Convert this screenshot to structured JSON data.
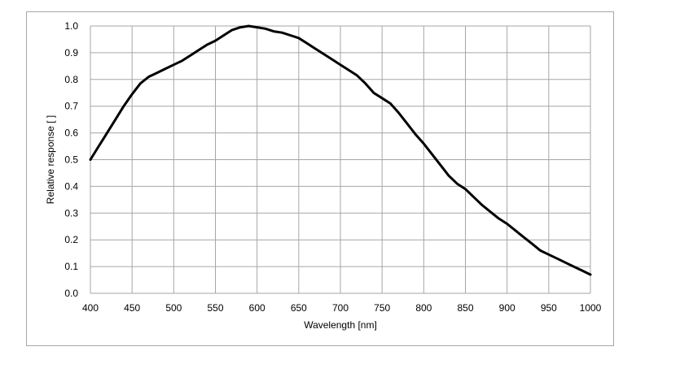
{
  "chart_data": {
    "type": "line",
    "title": "",
    "xlabel": "Wavelength [nm]",
    "ylabel": "Relative response [ ]",
    "xlim": [
      400,
      1000
    ],
    "ylim": [
      0,
      1
    ],
    "x_ticks": [
      "400",
      "450",
      "500",
      "550",
      "600",
      "650",
      "700",
      "750",
      "800",
      "850",
      "900",
      "950",
      "1000"
    ],
    "y_ticks": [
      "0.0",
      "0.1",
      "0.2",
      "0.3",
      "0.4",
      "0.5",
      "0.6",
      "0.7",
      "0.8",
      "0.9",
      "1.0"
    ],
    "grid": true,
    "legend": "none",
    "line_color": "#000000",
    "grid_color": "#a6a6a6",
    "series": [
      {
        "x": [
          400,
          410,
          420,
          430,
          440,
          450,
          460,
          470,
          480,
          490,
          500,
          510,
          520,
          530,
          540,
          550,
          560,
          570,
          580,
          590,
          600,
          610,
          620,
          630,
          640,
          650,
          660,
          670,
          680,
          690,
          700,
          710,
          720,
          730,
          740,
          750,
          760,
          770,
          780,
          790,
          800,
          810,
          820,
          830,
          840,
          850,
          860,
          870,
          880,
          890,
          900,
          910,
          920,
          930,
          940,
          950,
          960,
          970,
          980,
          990,
          1000
        ],
        "y": [
          0.5,
          0.55,
          0.6,
          0.65,
          0.7,
          0.745,
          0.785,
          0.81,
          0.825,
          0.84,
          0.855,
          0.87,
          0.89,
          0.91,
          0.93,
          0.945,
          0.965,
          0.985,
          0.995,
          1.0,
          0.995,
          0.99,
          0.98,
          0.975,
          0.965,
          0.955,
          0.935,
          0.915,
          0.895,
          0.875,
          0.855,
          0.835,
          0.815,
          0.785,
          0.75,
          0.73,
          0.71,
          0.675,
          0.635,
          0.595,
          0.56,
          0.52,
          0.48,
          0.44,
          0.41,
          0.39,
          0.36,
          0.33,
          0.305,
          0.28,
          0.26,
          0.235,
          0.21,
          0.185,
          0.16,
          0.145,
          0.13,
          0.115,
          0.1,
          0.085,
          0.07
        ]
      }
    ]
  }
}
